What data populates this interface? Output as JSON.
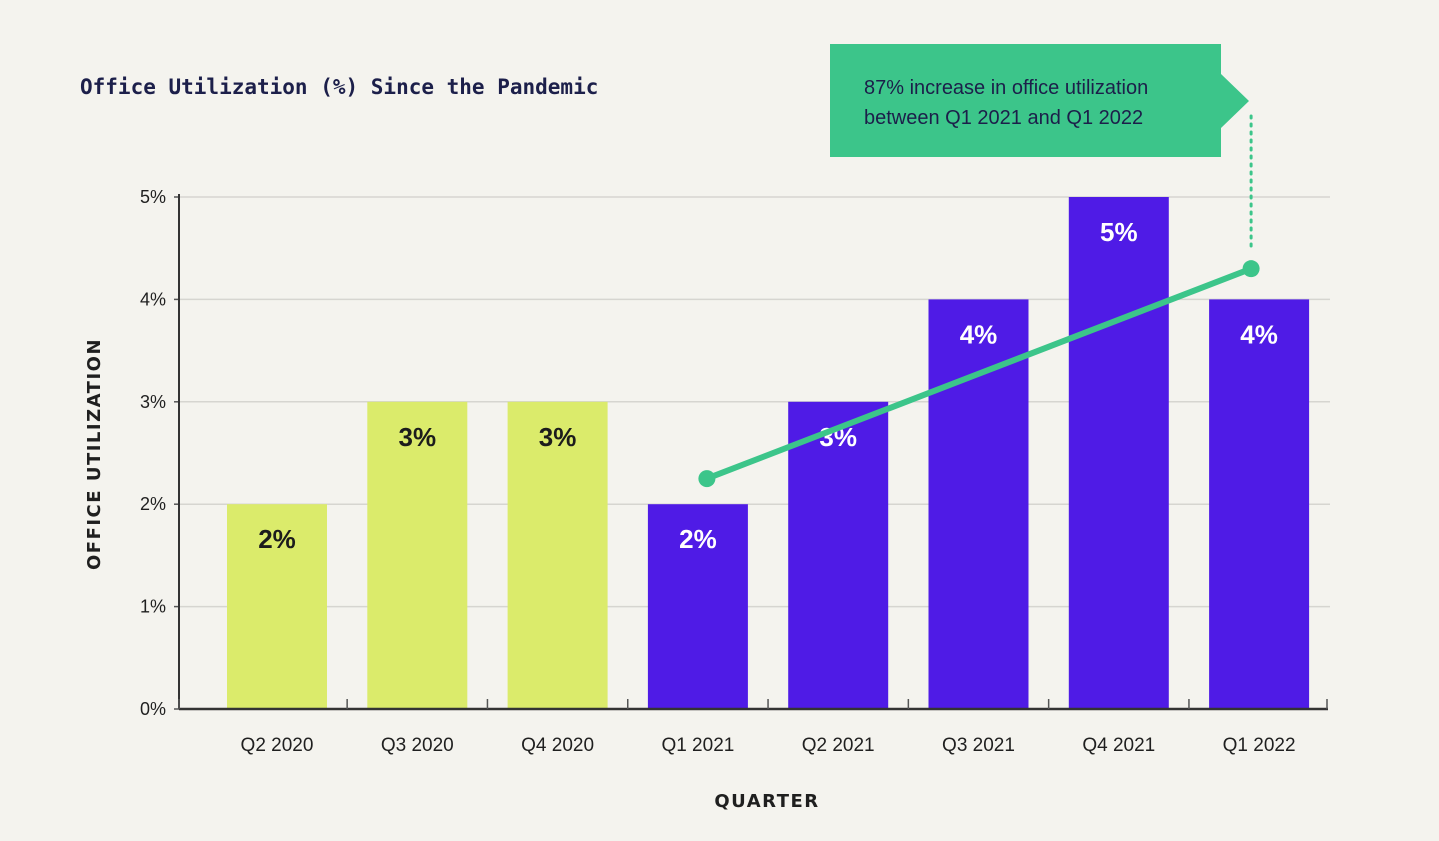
{
  "chart_data": {
    "type": "bar",
    "title": "Office Utilization (%) Since the Pandemic",
    "xlabel": "QUARTER",
    "ylabel": "OFFICE UTILIZATION",
    "ylim": [
      0,
      5
    ],
    "yticks": [
      "0%",
      "1%",
      "2%",
      "3%",
      "4%",
      "5%"
    ],
    "grid": true,
    "categories": [
      "Q2 2020",
      "Q3 2020",
      "Q4 2020",
      "Q1 2021",
      "Q2 2021",
      "Q3 2021",
      "Q4 2021",
      "Q1 2022"
    ],
    "values": [
      2,
      3,
      3,
      2,
      3,
      4,
      5,
      4
    ],
    "value_labels": [
      "2%",
      "3%",
      "3%",
      "2%",
      "3%",
      "4%",
      "5%",
      "4%"
    ],
    "bar_groups": [
      "2020",
      "2020",
      "2020",
      "2021-2022",
      "2021-2022",
      "2021-2022",
      "2021-2022",
      "2021-2022"
    ],
    "colors": {
      "2020": "#dbeb6b",
      "2021-2022": "#4f1be6",
      "label_on_2020": "#1c1c1c",
      "label_on_2021-2022": "#ffffff",
      "trend": "#3cc58a",
      "callout_bg": "#3cc58a"
    },
    "trend_line": {
      "start": {
        "category": "Q1 2021",
        "value": 2.25
      },
      "end": {
        "category": "Q1 2022",
        "value": 4.3
      }
    },
    "annotation": {
      "lines": [
        "87% increase in office utilization",
        "between Q1 2021 and Q1 2022"
      ],
      "points_to": "Q1 2022"
    }
  }
}
